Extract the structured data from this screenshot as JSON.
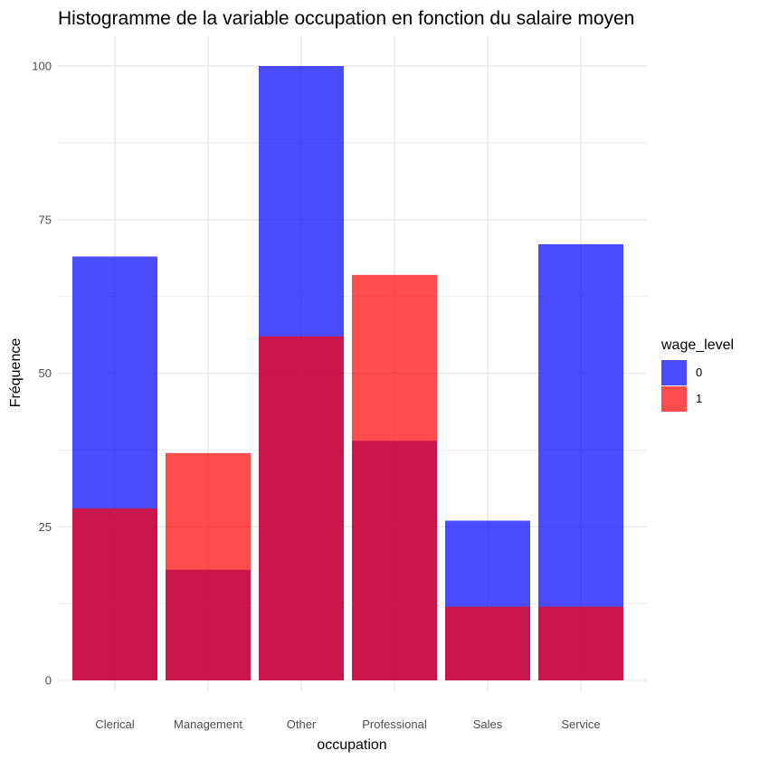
{
  "chart_data": {
    "type": "bar",
    "title": "Histogramme de la variable occupation en fonction du salaire moyen",
    "xlabel": "occupation",
    "ylabel": "Fréquence",
    "categories": [
      "Clerical",
      "Management",
      "Other",
      "Professional",
      "Sales",
      "Service"
    ],
    "series": [
      {
        "name": "0",
        "values": [
          69,
          18,
          100,
          39,
          26,
          71
        ],
        "color": "#0000FF"
      },
      {
        "name": "1",
        "values": [
          28,
          37,
          56,
          66,
          12,
          12
        ],
        "color": "#FF0000"
      }
    ],
    "series_opacity": 0.7,
    "ylim": [
      0,
      100
    ],
    "yticks": [
      0,
      25,
      50,
      75,
      100
    ],
    "grid": true,
    "legend": {
      "title": "wage_level",
      "position": "right"
    }
  }
}
